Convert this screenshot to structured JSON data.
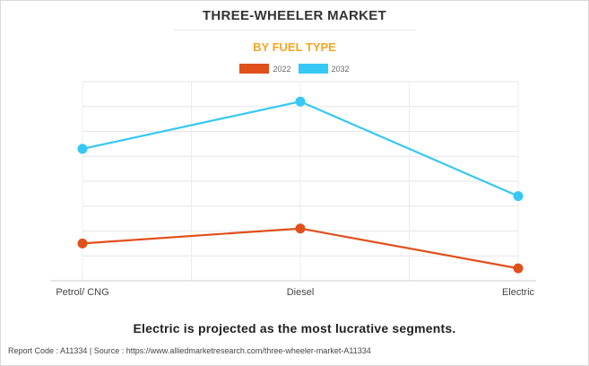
{
  "chart_title": "THREE-WHEELER MARKET",
  "chart_subtitle": "BY FUEL TYPE",
  "caption": "Electric is projected as the most lucrative segments.",
  "footer": {
    "report_code": "Report Code : A11334",
    "separator": "|",
    "source": "Source : https://www.alliedmarketresearch.com/three-wheeler-market-A11334"
  },
  "colors": {
    "series_2022": "#e0501b",
    "series_2032": "#35c8f5",
    "subtitle": "#f5a623"
  },
  "chart_data": {
    "type": "line",
    "title": "THREE-WHEELER MARKET",
    "subtitle": "BY FUEL TYPE",
    "categories": [
      "Petrol/ CNG",
      "Diesel",
      "Electric"
    ],
    "series": [
      {
        "name": "2022",
        "values": [
          1.5,
          2.1,
          0.5
        ]
      },
      {
        "name": "2032",
        "values": [
          5.3,
          7.2,
          3.4
        ]
      }
    ],
    "ylim": [
      0,
      8
    ],
    "y_ticks": [
      0,
      1,
      2,
      3,
      4,
      5,
      6,
      7,
      8
    ],
    "y_tick_labels_visible": false,
    "grid": true,
    "legend_position": "top-center"
  }
}
